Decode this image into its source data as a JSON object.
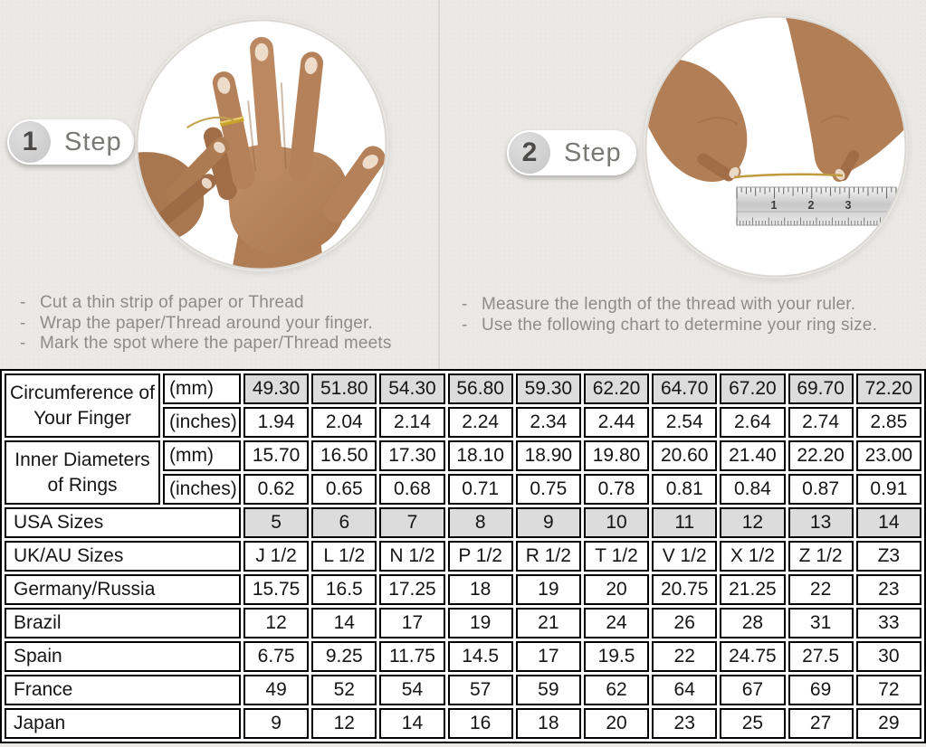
{
  "bullet_char": "-",
  "steps": [
    {
      "number": "1",
      "label": "Step",
      "instructions": [
        "Cut a thin strip of paper or Thread",
        "Wrap the paper/Thread around your finger.",
        "Mark the spot where the paper/Thread meets"
      ]
    },
    {
      "number": "2",
      "label": "Step",
      "instructions": [
        "Measure the length of the thread with your ruler.",
        "Use the following chart to determine your ring size."
      ]
    }
  ],
  "ruler_numbers": [
    "1",
    "2",
    "3"
  ],
  "colors": {
    "background": "#ebe9e5",
    "table_shaded": "#dcdcdc",
    "table_border": "#000000",
    "gold_accent": "#c9a227",
    "instruction_text": "#8e8c89"
  },
  "size_chart": {
    "rows": [
      {
        "label": "Circumference of Your Finger",
        "label_rowspan": 2,
        "unit": "(mm)",
        "shaded": true,
        "values": [
          "49.30",
          "51.80",
          "54.30",
          "56.80",
          "59.30",
          "62.20",
          "64.70",
          "67.20",
          "69.70",
          "72.20"
        ]
      },
      {
        "unit": "(inches)",
        "values": [
          "1.94",
          "2.04",
          "2.14",
          "2.24",
          "2.34",
          "2.44",
          "2.54",
          "2.64",
          "2.74",
          "2.85"
        ]
      },
      {
        "label": "Inner Diameters of Rings",
        "label_rowspan": 2,
        "unit": "(mm)",
        "values": [
          "15.70",
          "16.50",
          "17.30",
          "18.10",
          "18.90",
          "19.80",
          "20.60",
          "21.40",
          "22.20",
          "23.00"
        ]
      },
      {
        "unit": "(inches)",
        "values": [
          "0.62",
          "0.65",
          "0.68",
          "0.71",
          "0.75",
          "0.78",
          "0.81",
          "0.84",
          "0.87",
          "0.91"
        ]
      },
      {
        "label": "USA Sizes",
        "label_colspan": 2,
        "shaded": true,
        "values": [
          "5",
          "6",
          "7",
          "8",
          "9",
          "10",
          "11",
          "12",
          "13",
          "14"
        ]
      },
      {
        "label": "UK/AU Sizes",
        "label_colspan": 2,
        "values": [
          "J 1/2",
          "L 1/2",
          "N 1/2",
          "P 1/2",
          "R 1/2",
          "T 1/2",
          "V 1/2",
          "X 1/2",
          "Z 1/2",
          "Z3"
        ]
      },
      {
        "label": "Germany/Russia",
        "label_colspan": 2,
        "values": [
          "15.75",
          "16.5",
          "17.25",
          "18",
          "19",
          "20",
          "20.75",
          "21.25",
          "22",
          "23"
        ]
      },
      {
        "label": "Brazil",
        "label_colspan": 2,
        "values": [
          "12",
          "14",
          "17",
          "19",
          "21",
          "24",
          "26",
          "28",
          "31",
          "33"
        ]
      },
      {
        "label": "Spain",
        "label_colspan": 2,
        "values": [
          "6.75",
          "9.25",
          "11.75",
          "14.5",
          "17",
          "19.5",
          "22",
          "24.75",
          "27.5",
          "30"
        ]
      },
      {
        "label": "France",
        "label_colspan": 2,
        "values": [
          "49",
          "52",
          "54",
          "57",
          "59",
          "62",
          "64",
          "67",
          "69",
          "72"
        ]
      },
      {
        "label": "Japan",
        "label_colspan": 2,
        "values": [
          "9",
          "12",
          "14",
          "16",
          "18",
          "20",
          "23",
          "25",
          "27",
          "29"
        ]
      }
    ]
  }
}
